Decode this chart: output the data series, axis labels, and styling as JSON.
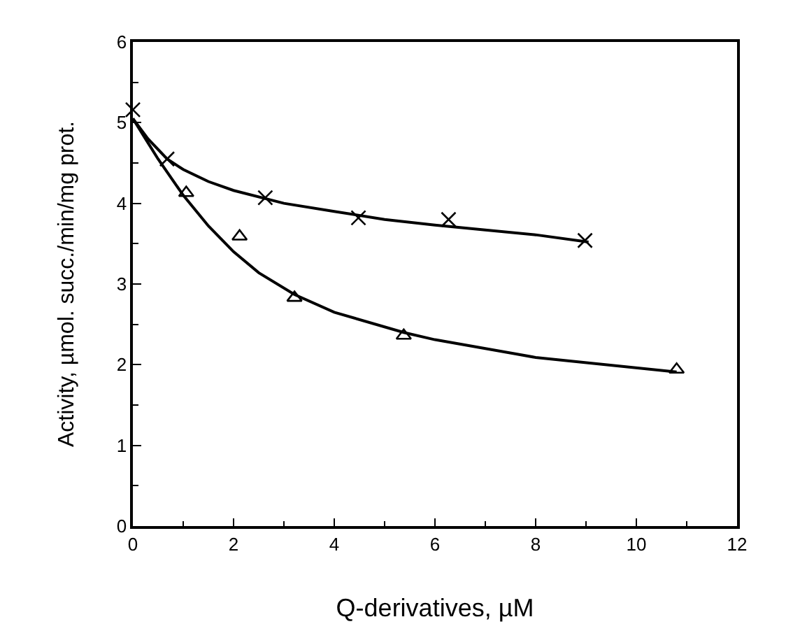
{
  "chart_data": {
    "type": "scatter",
    "xlabel": "Q-derivatives, µM",
    "ylabel": "Activity, µmol. succ./min/mg prot.",
    "xlim": [
      0,
      12
    ],
    "xticks": [
      0,
      2,
      4,
      6,
      8,
      10,
      12
    ],
    "ylim": [
      0,
      6
    ],
    "yticks": [
      0,
      1,
      2,
      3,
      4,
      5,
      6
    ],
    "grid": false,
    "legend": false,
    "series": [
      {
        "type": "line",
        "marker": "none",
        "line_style": "solid",
        "color": "#000000",
        "x": [
          0,
          0.3,
          0.68,
          1,
          1.5,
          2,
          3,
          4,
          5,
          6,
          7,
          8,
          9.05
        ],
        "values": [
          5.05,
          4.8,
          4.55,
          4.42,
          4.27,
          4.16,
          4.0,
          3.9,
          3.8,
          3.73,
          3.67,
          3.61,
          3.52
        ]
      },
      {
        "type": "line",
        "marker": "none",
        "line_style": "solid",
        "color": "#000000",
        "x": [
          0,
          0.25,
          0.5,
          1,
          1.5,
          2,
          2.5,
          3.21,
          4,
          5.38,
          6,
          8,
          10.8
        ],
        "values": [
          5.05,
          4.8,
          4.55,
          4.1,
          3.72,
          3.4,
          3.14,
          2.87,
          2.65,
          2.4,
          2.31,
          2.09,
          1.91
        ]
      },
      {
        "marker": "cross",
        "color": "#000000",
        "x": [
          0,
          0.68,
          2.63,
          4.48,
          6.27,
          8.98
        ],
        "values": [
          5.16,
          4.55,
          4.07,
          3.82,
          3.8,
          3.54
        ]
      },
      {
        "marker": "triangle",
        "color": "#000000",
        "x": [
          1.06,
          2.12,
          3.21,
          5.38,
          10.8
        ],
        "values": [
          4.13,
          3.59,
          2.83,
          2.36,
          1.94
        ]
      }
    ]
  }
}
